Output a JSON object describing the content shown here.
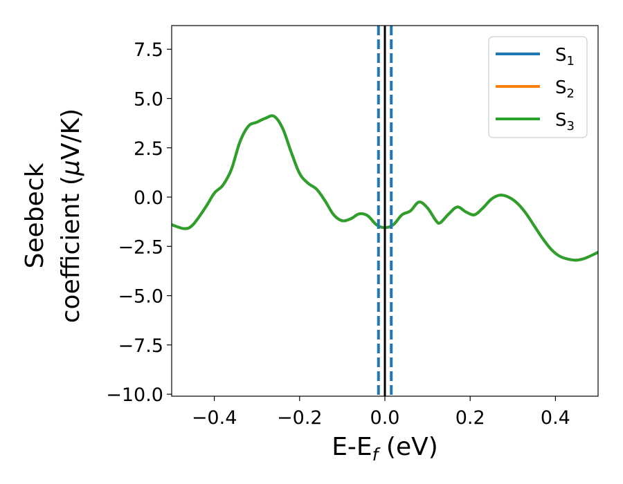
{
  "chart_data": {
    "type": "line",
    "title": "",
    "xlabel_main": "E-E",
    "xlabel_sub": "f",
    "xlabel_tail": " (eV)",
    "ylabel_line1": "Seebeck",
    "ylabel_line2_a": "coefficient  (",
    "ylabel_line2_mu": "μ",
    "ylabel_line2_b": "V/K)",
    "xlim": [
      -0.5,
      0.5
    ],
    "ylim": [
      -10.1,
      8.7
    ],
    "x_ticks": [
      -0.4,
      -0.2,
      0.0,
      0.2,
      0.4
    ],
    "x_tick_labels": [
      "−0.4",
      "−0.2",
      "0.0",
      "0.2",
      "0.4"
    ],
    "y_ticks": [
      7.5,
      5.0,
      2.5,
      0.0,
      -2.5,
      -5.0,
      -7.5,
      -10.0
    ],
    "y_tick_labels": [
      "7.5",
      "5.0",
      "2.5",
      "0.0",
      "−2.5",
      "−5.0",
      "−7.5",
      "−10.0"
    ],
    "grid": false,
    "legend_position": "top-right",
    "series": [
      {
        "name_main": "S",
        "name_sub": "1",
        "color": "#1f77b4",
        "x": [
          -0.5,
          -0.47,
          -0.45,
          -0.42,
          -0.4,
          -0.38,
          -0.36,
          -0.34,
          -0.32,
          -0.3,
          -0.28,
          -0.26,
          -0.24,
          -0.22,
          -0.2,
          -0.18,
          -0.16,
          -0.14,
          -0.12,
          -0.1,
          -0.08,
          -0.06,
          -0.04,
          -0.02,
          0.0,
          0.02,
          0.04,
          0.06,
          0.08,
          0.1,
          0.12,
          0.13,
          0.15,
          0.17,
          0.19,
          0.21,
          0.23,
          0.25,
          0.27,
          0.29,
          0.31,
          0.33,
          0.35,
          0.37,
          0.39,
          0.41,
          0.43,
          0.45,
          0.47,
          0.5
        ],
        "y": [
          -1.4,
          -1.6,
          -1.4,
          -0.5,
          0.2,
          0.6,
          1.4,
          2.8,
          3.6,
          3.8,
          4.0,
          4.1,
          3.5,
          2.3,
          1.2,
          0.7,
          0.4,
          -0.2,
          -0.9,
          -1.2,
          -1.1,
          -0.85,
          -0.95,
          -1.4,
          -1.55,
          -1.4,
          -0.9,
          -0.7,
          -0.25,
          -0.55,
          -1.2,
          -1.3,
          -0.85,
          -0.5,
          -0.75,
          -0.9,
          -0.55,
          -0.1,
          0.1,
          0.0,
          -0.3,
          -0.8,
          -1.45,
          -2.1,
          -2.65,
          -3.0,
          -3.15,
          -3.2,
          -3.1,
          -2.8
        ]
      },
      {
        "name_main": "S",
        "name_sub": "2",
        "color": "#ff7f0e",
        "x": [
          -0.5,
          -0.47,
          -0.45,
          -0.42,
          -0.4,
          -0.38,
          -0.36,
          -0.34,
          -0.32,
          -0.3,
          -0.28,
          -0.26,
          -0.24,
          -0.22,
          -0.2,
          -0.18,
          -0.16,
          -0.14,
          -0.12,
          -0.1,
          -0.08,
          -0.06,
          -0.04,
          -0.02,
          0.0,
          0.02,
          0.04,
          0.06,
          0.08,
          0.1,
          0.12,
          0.13,
          0.15,
          0.17,
          0.19,
          0.21,
          0.23,
          0.25,
          0.27,
          0.29,
          0.31,
          0.33,
          0.35,
          0.37,
          0.39,
          0.41,
          0.43,
          0.45,
          0.47,
          0.5
        ],
        "y": [
          -1.4,
          -1.6,
          -1.4,
          -0.5,
          0.2,
          0.6,
          1.4,
          2.8,
          3.6,
          3.8,
          4.0,
          4.1,
          3.5,
          2.3,
          1.2,
          0.7,
          0.4,
          -0.2,
          -0.9,
          -1.2,
          -1.1,
          -0.85,
          -0.95,
          -1.4,
          -1.55,
          -1.4,
          -0.9,
          -0.7,
          -0.25,
          -0.55,
          -1.2,
          -1.3,
          -0.85,
          -0.5,
          -0.75,
          -0.9,
          -0.55,
          -0.1,
          0.1,
          0.0,
          -0.3,
          -0.8,
          -1.45,
          -2.1,
          -2.65,
          -3.0,
          -3.15,
          -3.2,
          -3.1,
          -2.8
        ]
      },
      {
        "name_main": "S",
        "name_sub": "3",
        "color": "#2ca02c",
        "x": [
          -0.5,
          -0.47,
          -0.45,
          -0.42,
          -0.4,
          -0.38,
          -0.36,
          -0.34,
          -0.32,
          -0.3,
          -0.28,
          -0.26,
          -0.24,
          -0.22,
          -0.2,
          -0.18,
          -0.16,
          -0.14,
          -0.12,
          -0.1,
          -0.08,
          -0.06,
          -0.04,
          -0.02,
          0.0,
          0.02,
          0.04,
          0.06,
          0.08,
          0.1,
          0.12,
          0.13,
          0.15,
          0.17,
          0.19,
          0.21,
          0.23,
          0.25,
          0.27,
          0.29,
          0.31,
          0.33,
          0.35,
          0.37,
          0.39,
          0.41,
          0.43,
          0.45,
          0.47,
          0.5
        ],
        "y": [
          -1.4,
          -1.6,
          -1.4,
          -0.5,
          0.2,
          0.6,
          1.4,
          2.8,
          3.6,
          3.8,
          4.0,
          4.1,
          3.5,
          2.3,
          1.2,
          0.7,
          0.4,
          -0.2,
          -0.9,
          -1.2,
          -1.1,
          -0.85,
          -0.95,
          -1.4,
          -1.55,
          -1.4,
          -0.9,
          -0.7,
          -0.25,
          -0.55,
          -1.2,
          -1.3,
          -0.85,
          -0.5,
          -0.75,
          -0.9,
          -0.55,
          -0.1,
          0.1,
          0.0,
          -0.3,
          -0.8,
          -1.45,
          -2.1,
          -2.65,
          -3.0,
          -3.15,
          -3.2,
          -3.1,
          -2.8
        ]
      }
    ],
    "vertical_lines": [
      {
        "x": -0.015,
        "style": "dashed",
        "color": "#1f77b4"
      },
      {
        "x": 0.0,
        "style": "solid",
        "color": "#000000"
      },
      {
        "x": 0.015,
        "style": "dashed",
        "color": "#1f77b4"
      }
    ]
  }
}
